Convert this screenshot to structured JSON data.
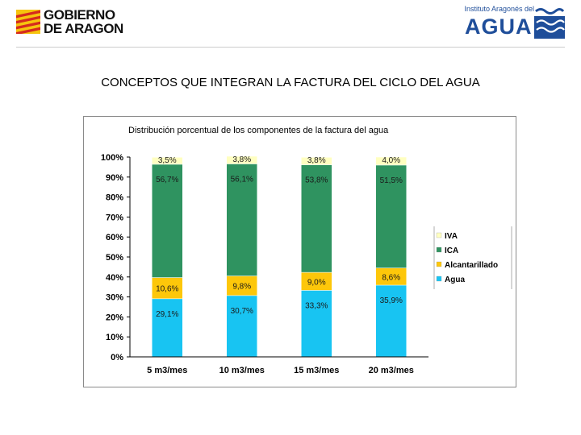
{
  "header": {
    "gov_logo_line1": "GOBIERNO",
    "gov_logo_line2": "DE ARAGON",
    "inst_logo_small": "Instituto Aragonés del",
    "inst_logo_big": "AGUA"
  },
  "page_title": "CONCEPTOS QUE INTEGRAN LA FACTURA DEL CICLO DEL AGUA",
  "colors": {
    "agua": "#18c4f2",
    "alcantarillado": "#fdc70a",
    "ica": "#2f9360",
    "iva": "#ffffc0",
    "flag_yellow": "#f6c40e",
    "flag_red": "#d52b1e",
    "brand_blue": "#1f4e9a"
  },
  "chart_data": {
    "type": "bar",
    "stacked": true,
    "title": "Distribución porcentual de los componentes de la factura del agua",
    "xlabel": "",
    "ylabel": "",
    "ylim": [
      0,
      100
    ],
    "yticks": [
      "0%",
      "10%",
      "20%",
      "30%",
      "40%",
      "50%",
      "60%",
      "70%",
      "80%",
      "90%",
      "100%"
    ],
    "categories": [
      "5 m3/mes",
      "10 m3/mes",
      "15 m3/mes",
      "20 m3/mes"
    ],
    "legend_position": "right",
    "series": [
      {
        "name": "Agua",
        "key": "agua",
        "values": [
          29.1,
          30.7,
          33.3,
          35.9
        ],
        "labels": [
          "29,1%",
          "30,7%",
          "33,3%",
          "35,9%"
        ]
      },
      {
        "name": "Alcantarillado",
        "key": "alcantarillado",
        "values": [
          10.6,
          9.8,
          9.0,
          8.6
        ],
        "labels": [
          "10,6%",
          "9,8%",
          "9,0%",
          "8,6%"
        ]
      },
      {
        "name": "ICA",
        "key": "ica",
        "values": [
          56.7,
          56.1,
          53.8,
          51.5
        ],
        "labels": [
          "56,7%",
          "56,1%",
          "53,8%",
          "51,5%"
        ]
      },
      {
        "name": "IVA",
        "key": "iva",
        "values": [
          3.5,
          3.8,
          3.8,
          4.0
        ],
        "labels": [
          "3,5%",
          "3,8%",
          "3,8%",
          "4,0%"
        ]
      }
    ],
    "legend_order": [
      "IVA",
      "ICA",
      "Alcantarillado",
      "Agua"
    ]
  }
}
